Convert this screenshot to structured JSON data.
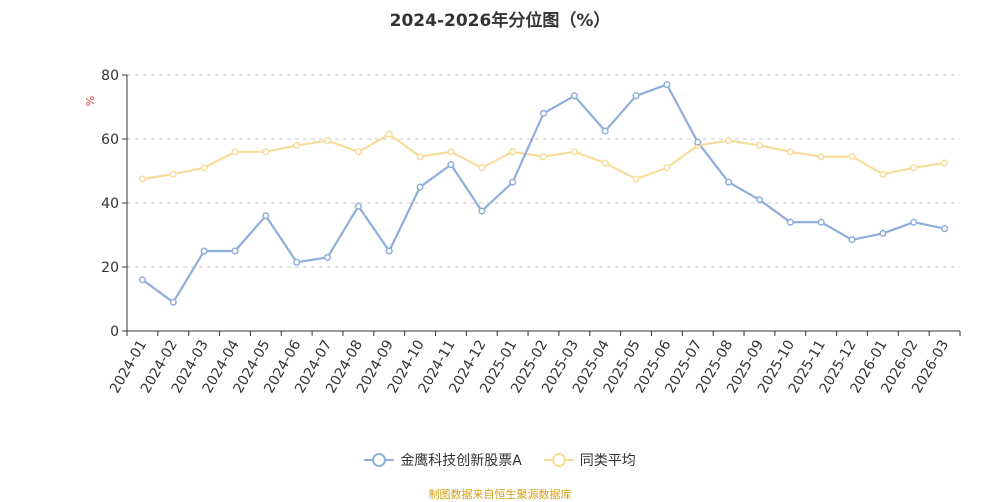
{
  "chart_data": {
    "type": "line",
    "title": "2024-2026年分位图（%）",
    "ylabel": "%",
    "xlabel": "",
    "ylim": [
      0,
      80
    ],
    "yticks": [
      0,
      20,
      40,
      60,
      80
    ],
    "grid": "horizontal dashed",
    "categories": [
      "2024-01",
      "2024-02",
      "2024-03",
      "2024-04",
      "2024-05",
      "2024-06",
      "2024-07",
      "2024-08",
      "2024-09",
      "2024-10",
      "2024-11",
      "2024-12",
      "2025-01",
      "2025-02",
      "2025-03",
      "2025-04",
      "2025-05",
      "2025-06",
      "2025-07",
      "2025-08",
      "2025-09",
      "2025-10",
      "2025-11",
      "2025-12",
      "2026-01",
      "2026-02",
      "2026-03"
    ],
    "series": [
      {
        "name": "金鹰科技创新股票A",
        "color": "#8eaedb",
        "values": [
          16,
          9,
          25,
          25,
          36,
          21.5,
          23,
          39,
          25,
          45,
          52,
          37.5,
          46.5,
          68,
          73.5,
          62.5,
          73.5,
          77,
          59,
          46.5,
          41,
          34,
          34,
          28.5,
          30.5,
          34,
          32
        ]
      },
      {
        "name": "同类平均",
        "color": "#f9dc9a",
        "values": [
          47.5,
          49,
          51,
          56,
          56,
          58,
          59.5,
          56,
          61.5,
          54.5,
          56,
          51,
          56,
          54.5,
          56,
          52.5,
          47.5,
          51,
          58,
          59.5,
          58,
          56,
          54.5,
          54.5,
          49,
          51,
          52.5
        ]
      }
    ],
    "legend_position": "bottom-center"
  },
  "footer": {
    "source": "制图数据来自恒生聚源数据库"
  }
}
